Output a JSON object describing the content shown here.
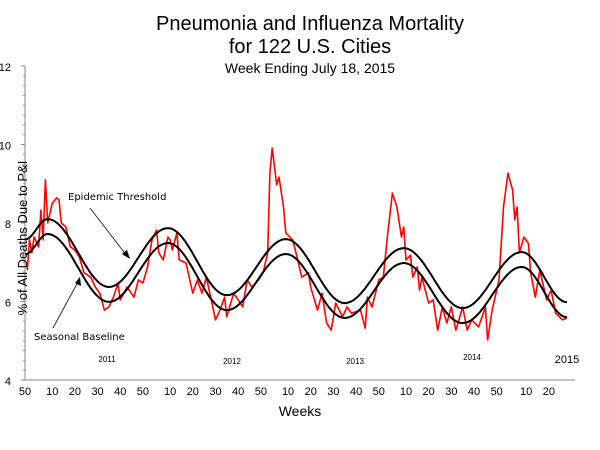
{
  "chart_data": {
    "type": "line",
    "title": "Pneumonia and Influenza Mortality",
    "title_line2": "for 122 U.S. Cities",
    "subtitle": "Week Ending  July 18, 2015",
    "xlabel": "Weeks",
    "ylabel": "% of All Deaths Due to P&I",
    "ylim": [
      4,
      12
    ],
    "yticks": [
      "4",
      "6",
      "8",
      "10",
      "12"
    ],
    "xlim": [
      "2010-50",
      "2015-28"
    ],
    "xtick_labels": [
      "50",
      "10",
      "20",
      "30",
      "40",
      "50",
      "10",
      "20",
      "30",
      "40",
      "50",
      "10",
      "20",
      "30",
      "40",
      "50",
      "10",
      "20",
      "30",
      "40",
      "50",
      "10",
      "20"
    ],
    "year_labels": [
      "2011",
      "2012",
      "2013",
      "2014",
      "2015"
    ],
    "grid": false,
    "annotations": {
      "threshold": "Epidemic Threshold",
      "baseline": "Seasonal Baseline"
    },
    "colors": {
      "observed": "#ff0000",
      "threshold": "#000000",
      "baseline": "#000000"
    },
    "series": [
      {
        "key": "observed",
        "points": [
          [
            "2010-51",
            6.8
          ],
          [
            "2010-52",
            7.57
          ],
          [
            "2011-01",
            7.24
          ],
          [
            "2011-02",
            7.64
          ],
          [
            "2011-04",
            7.39
          ],
          [
            "2011-05",
            8.33
          ],
          [
            "2011-06",
            7.57
          ],
          [
            "2011-07",
            9.1
          ],
          [
            "2011-08",
            8.0
          ],
          [
            "2011-10",
            8.5
          ],
          [
            "2011-12",
            8.64
          ],
          [
            "2011-13",
            8.59
          ],
          [
            "2011-14",
            8.0
          ],
          [
            "2011-16",
            7.9
          ],
          [
            "2011-18",
            7.39
          ],
          [
            "2011-20",
            7.31
          ],
          [
            "2011-22",
            7.13
          ],
          [
            "2011-24",
            6.73
          ],
          [
            "2011-27",
            6.62
          ],
          [
            "2011-29",
            6.37
          ],
          [
            "2011-31",
            6.21
          ],
          [
            "2011-33",
            5.78
          ],
          [
            "2011-35",
            5.86
          ],
          [
            "2011-37",
            6.11
          ],
          [
            "2011-39",
            6.47
          ],
          [
            "2011-40",
            6.04
          ],
          [
            "2011-43",
            6.37
          ],
          [
            "2011-46",
            6.11
          ],
          [
            "2011-48",
            6.55
          ],
          [
            "2011-50",
            6.47
          ],
          [
            "2011-52",
            6.88
          ],
          [
            "2012-02",
            7.57
          ],
          [
            "2012-04",
            7.82
          ],
          [
            "2012-05",
            7.24
          ],
          [
            "2012-07",
            7.06
          ],
          [
            "2012-09",
            7.64
          ],
          [
            "2012-10",
            7.57
          ],
          [
            "2012-11",
            7.31
          ],
          [
            "2012-13",
            7.75
          ],
          [
            "2012-14",
            7.06
          ],
          [
            "2012-17",
            6.98
          ],
          [
            "2012-20",
            6.21
          ],
          [
            "2012-22",
            6.55
          ],
          [
            "2012-24",
            6.21
          ],
          [
            "2012-26",
            6.62
          ],
          [
            "2012-30",
            5.53
          ],
          [
            "2012-32",
            5.78
          ],
          [
            "2012-34",
            6.11
          ],
          [
            "2012-35",
            5.61
          ],
          [
            "2012-38",
            6.21
          ],
          [
            "2012-40",
            6.04
          ],
          [
            "2012-42",
            5.86
          ],
          [
            "2012-44",
            6.55
          ],
          [
            "2012-46",
            6.37
          ],
          [
            "2012-49",
            6.55
          ],
          [
            "2012-51",
            6.73
          ],
          [
            "2013-01",
            7.24
          ],
          [
            "2013-02",
            9.27
          ],
          [
            "2013-03",
            9.91
          ],
          [
            "2013-05",
            8.97
          ],
          [
            "2013-06",
            9.17
          ],
          [
            "2013-08",
            8.41
          ],
          [
            "2013-09",
            7.75
          ],
          [
            "2013-12",
            7.57
          ],
          [
            "2013-14",
            7.13
          ],
          [
            "2013-16",
            6.62
          ],
          [
            "2013-19",
            6.73
          ],
          [
            "2013-20",
            6.37
          ],
          [
            "2013-23",
            5.78
          ],
          [
            "2013-25",
            6.21
          ],
          [
            "2013-27",
            5.45
          ],
          [
            "2013-29",
            5.27
          ],
          [
            "2013-31",
            5.96
          ],
          [
            "2013-34",
            5.61
          ],
          [
            "2013-36",
            5.86
          ],
          [
            "2013-38",
            5.7
          ],
          [
            "2013-42",
            5.78
          ],
          [
            "2013-44",
            5.32
          ],
          [
            "2013-45",
            6.11
          ],
          [
            "2013-47",
            5.86
          ],
          [
            "2013-50",
            6.55
          ],
          [
            "2013-52",
            6.62
          ],
          [
            "2014-02",
            7.75
          ],
          [
            "2014-04",
            8.76
          ],
          [
            "2014-06",
            8.41
          ],
          [
            "2014-08",
            7.64
          ],
          [
            "2014-09",
            7.9
          ],
          [
            "2014-10",
            7.06
          ],
          [
            "2014-12",
            7.18
          ],
          [
            "2014-13",
            6.62
          ],
          [
            "2014-15",
            6.88
          ],
          [
            "2014-16",
            6.29
          ],
          [
            "2014-17",
            6.62
          ],
          [
            "2014-20",
            5.96
          ],
          [
            "2014-22",
            6.04
          ],
          [
            "2014-24",
            5.27
          ],
          [
            "2014-26",
            5.86
          ],
          [
            "2014-28",
            5.45
          ],
          [
            "2014-30",
            5.86
          ],
          [
            "2014-32",
            5.27
          ],
          [
            "2014-35",
            5.86
          ],
          [
            "2014-37",
            5.27
          ],
          [
            "2014-39",
            5.53
          ],
          [
            "2014-42",
            5.35
          ],
          [
            "2014-45",
            5.86
          ],
          [
            "2014-46",
            5.02
          ],
          [
            "2014-48",
            5.78
          ],
          [
            "2014-51",
            6.55
          ],
          [
            "2014-53",
            8.41
          ],
          [
            "2015-02",
            9.27
          ],
          [
            "2015-04",
            8.84
          ],
          [
            "2015-05",
            8.08
          ],
          [
            "2015-06",
            8.41
          ],
          [
            "2015-07",
            7.24
          ],
          [
            "2015-09",
            7.64
          ],
          [
            "2015-11",
            7.48
          ],
          [
            "2015-12",
            6.73
          ],
          [
            "2015-14",
            6.11
          ],
          [
            "2015-16",
            6.8
          ],
          [
            "2015-19",
            6.04
          ],
          [
            "2015-21",
            6.29
          ],
          [
            "2015-23",
            5.7
          ],
          [
            "2015-26",
            5.53
          ],
          [
            "2015-28",
            5.58
          ]
        ]
      },
      {
        "key": "threshold",
        "name": "Epidemic Threshold",
        "points": [
          [
            "2010-50",
            7.58
          ],
          [
            "2011-08",
            8.1
          ],
          [
            "2011-35",
            6.37
          ],
          [
            "2012-09",
            7.87
          ],
          [
            "2012-35",
            6.16
          ],
          [
            "2013-09",
            7.59
          ],
          [
            "2013-35",
            5.96
          ],
          [
            "2014-09",
            7.36
          ],
          [
            "2014-35",
            5.83
          ],
          [
            "2015-08",
            7.26
          ],
          [
            "2015-28",
            5.98
          ]
        ]
      },
      {
        "key": "baseline",
        "name": "Seasonal Baseline",
        "points": [
          [
            "2010-50",
            7.2
          ],
          [
            "2011-08",
            7.72
          ],
          [
            "2011-35",
            5.99
          ],
          [
            "2012-09",
            7.49
          ],
          [
            "2012-35",
            5.78
          ],
          [
            "2013-09",
            7.21
          ],
          [
            "2013-35",
            5.58
          ],
          [
            "2014-09",
            6.98
          ],
          [
            "2014-35",
            5.45
          ],
          [
            "2015-08",
            6.88
          ],
          [
            "2015-28",
            5.6
          ]
        ]
      }
    ]
  }
}
